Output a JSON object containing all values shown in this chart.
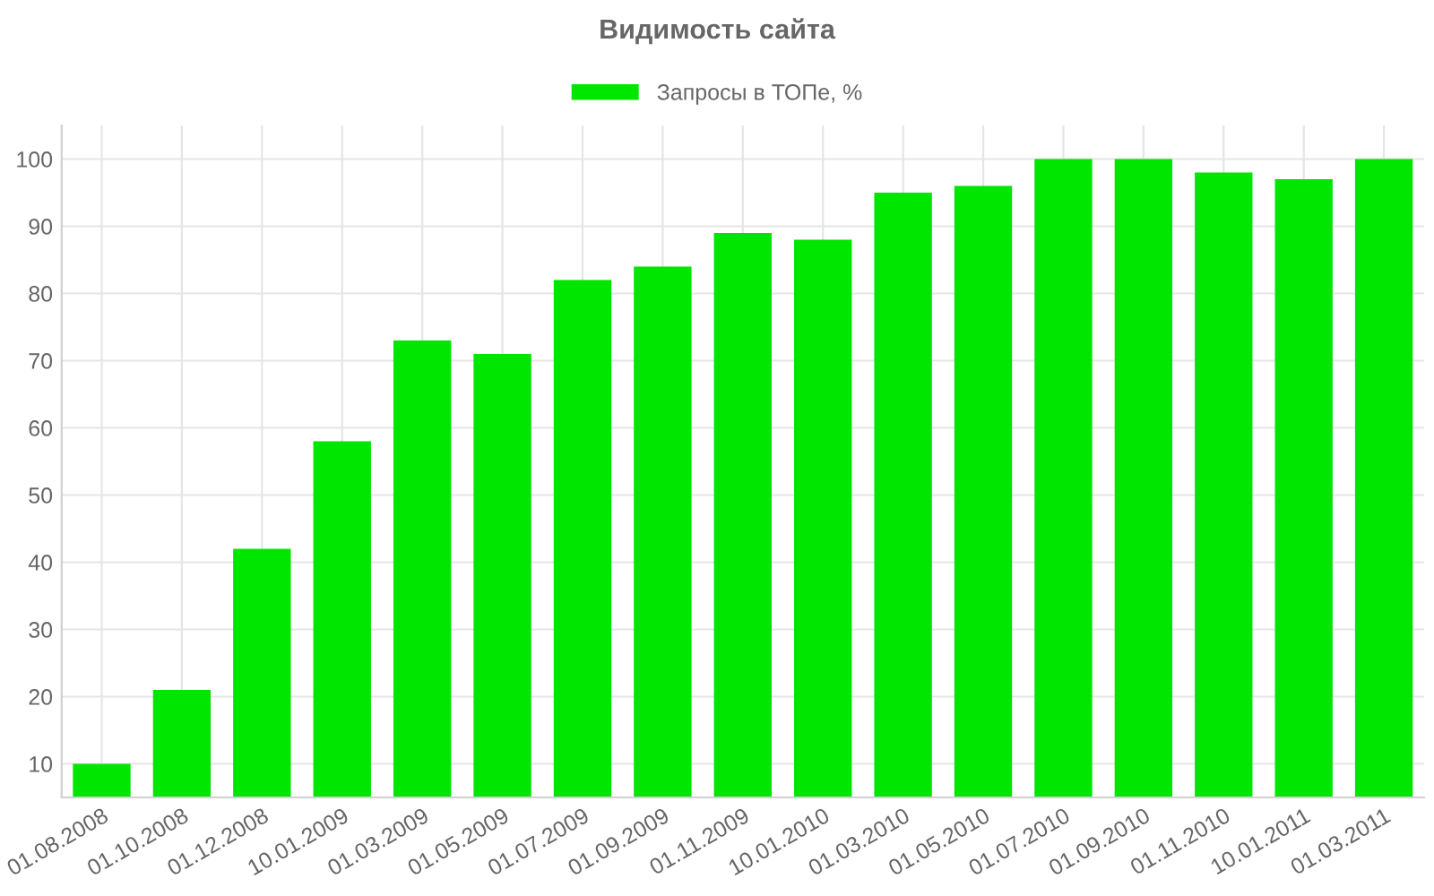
{
  "chart_data": {
    "type": "bar",
    "title": "Видимость сайта",
    "categories": [
      "01.08.2008",
      "01.10.2008",
      "01.12.2008",
      "10.01.2009",
      "01.03.2009",
      "01.05.2009",
      "01.07.2009",
      "01.09.2009",
      "01.11.2009",
      "10.01.2010",
      "01.03.2010",
      "01.05.2010",
      "01.07.2010",
      "01.09.2010",
      "01.11.2010",
      "10.01.2011",
      "01.03.2011"
    ],
    "series": [
      {
        "name": "Запросы в ТОПе, %",
        "color": "#00e600",
        "values": [
          10,
          21,
          42,
          58,
          73,
          71,
          82,
          84,
          89,
          88,
          95,
          96,
          100,
          100,
          98,
          97,
          100
        ]
      }
    ],
    "ylim": [
      5,
      105
    ],
    "yticks": [
      10,
      20,
      30,
      40,
      50,
      60,
      70,
      80,
      90,
      100
    ],
    "grid": true,
    "legend": "top"
  }
}
